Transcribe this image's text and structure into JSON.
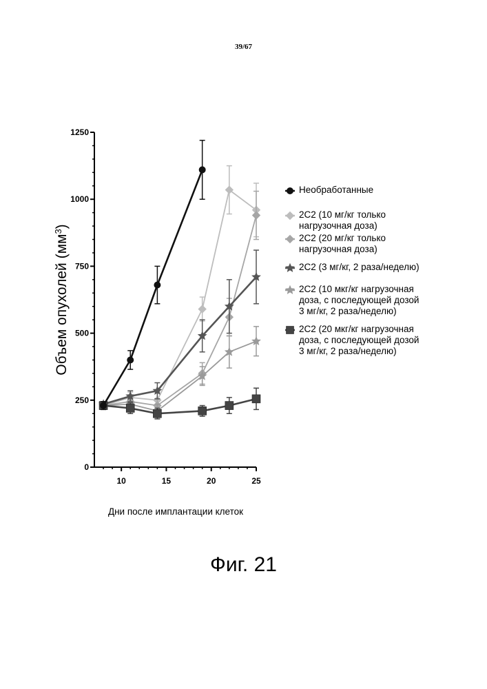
{
  "page_number": "39/67",
  "figure_caption": "Фиг. 21",
  "colors": {
    "untreated": "#111111",
    "dose10_loading": "#bdbdbd",
    "dose20_loading": "#a6a6a6",
    "dose3_twice": "#555555",
    "dose10_then3": "#9a9a9a",
    "dose20_then3": "#444444"
  },
  "chart_data": {
    "type": "line",
    "xlabel": "Дни после имплантации клеток",
    "ylabel_main": "Объем опухолей (мм",
    "ylabel_sup": "3",
    "ylabel_end": ")",
    "xlim": [
      7,
      25
    ],
    "ylim": [
      0,
      1250
    ],
    "xticks": [
      10,
      15,
      20,
      25
    ],
    "yticks": [
      0,
      250,
      500,
      750,
      1000,
      1250
    ],
    "grid": false,
    "legend_position": "right",
    "series": [
      {
        "name": "Необработанные",
        "marker": "circle",
        "color_key": "untreated",
        "x": [
          8,
          11,
          14,
          19
        ],
        "y": [
          230,
          400,
          680,
          1110
        ],
        "err": [
          15,
          35,
          70,
          110
        ]
      },
      {
        "name": "2C2 (10 мг/кг только\nнагрузочная доза)",
        "marker": "diamond",
        "color_key": "dose10_loading",
        "x": [
          8,
          11,
          14,
          19,
          22,
          25
        ],
        "y": [
          230,
          260,
          250,
          590,
          1035,
          960
        ],
        "err": [
          10,
          20,
          30,
          45,
          90,
          100
        ]
      },
      {
        "name": "2C2 (20 мг/кг только\nнагрузочная доза)",
        "marker": "diamond",
        "color_key": "dose20_loading",
        "x": [
          8,
          11,
          14,
          19,
          22,
          25
        ],
        "y": [
          230,
          245,
          230,
          350,
          560,
          940
        ],
        "err": [
          10,
          20,
          25,
          40,
          70,
          90
        ]
      },
      {
        "name": "2C2 (3 мг/кг, 2 раза/неделю)",
        "marker": "star",
        "color_key": "dose3_twice",
        "x": [
          8,
          11,
          14,
          19,
          22,
          25
        ],
        "y": [
          235,
          265,
          285,
          490,
          600,
          710
        ],
        "err": [
          10,
          20,
          30,
          60,
          100,
          100
        ]
      },
      {
        "name": "2C2 (10 мкг/кг нагрузочная\nдоза, с последующей дозой\n3 мг/кг, 2 раза/неделю)",
        "marker": "star",
        "color_key": "dose10_then3",
        "x": [
          8,
          11,
          14,
          19,
          22,
          25
        ],
        "y": [
          230,
          235,
          210,
          340,
          430,
          470
        ],
        "err": [
          10,
          20,
          25,
          35,
          60,
          55
        ]
      },
      {
        "name": "2C2 (20 мкг/кг нагрузочная\nдоза, с последующей дозой\n3 мг/кг, 2 раза/неделю)",
        "marker": "square",
        "color_key": "dose20_then3",
        "x": [
          8,
          11,
          14,
          19,
          22,
          25
        ],
        "y": [
          230,
          220,
          200,
          210,
          230,
          255
        ],
        "err": [
          10,
          20,
          20,
          20,
          30,
          40
        ]
      }
    ]
  }
}
